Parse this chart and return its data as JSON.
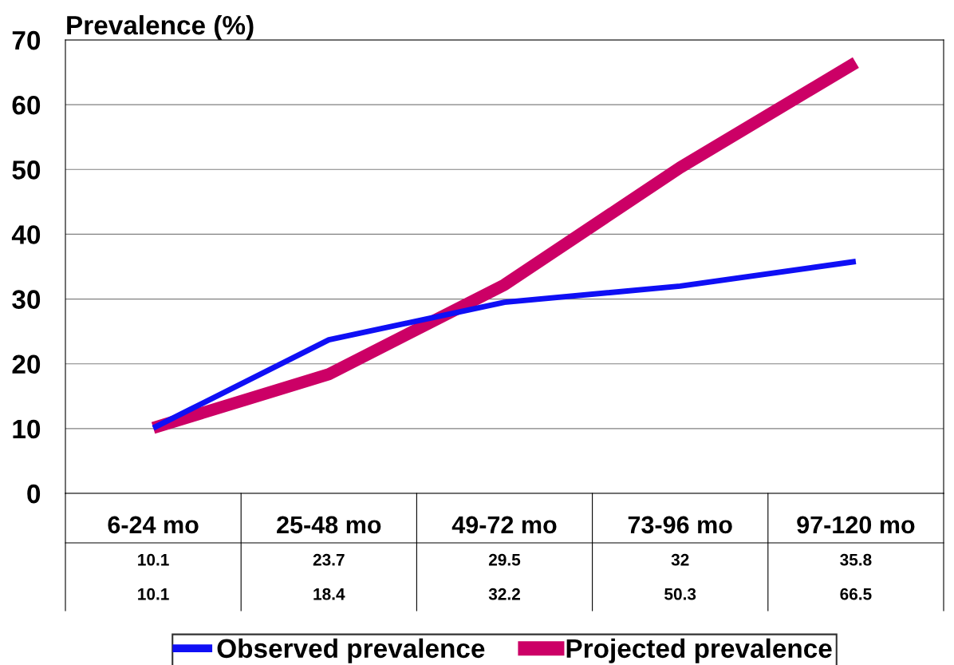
{
  "chart_data": {
    "type": "line",
    "ylabel": "Prevalence (%)",
    "categories": [
      "6-24 mo",
      "25-48 mo",
      "49-72 mo",
      "73-96 mo",
      "97-120 mo"
    ],
    "series": [
      {
        "name": "Observed prevalence",
        "color": "#0f0ff5",
        "values": [
          10.1,
          23.7,
          29.5,
          32,
          35.8
        ]
      },
      {
        "name": "Projected prevalence",
        "color": "#cc0066",
        "values": [
          10.1,
          18.4,
          32.2,
          50.3,
          66.5
        ]
      }
    ],
    "ylim": [
      0,
      70
    ],
    "yticks": [
      0,
      10,
      20,
      30,
      40,
      50,
      60,
      70
    ],
    "grid": "y",
    "legend": "bottom",
    "data_labels": true,
    "marker": "none",
    "line_style": "solid"
  }
}
